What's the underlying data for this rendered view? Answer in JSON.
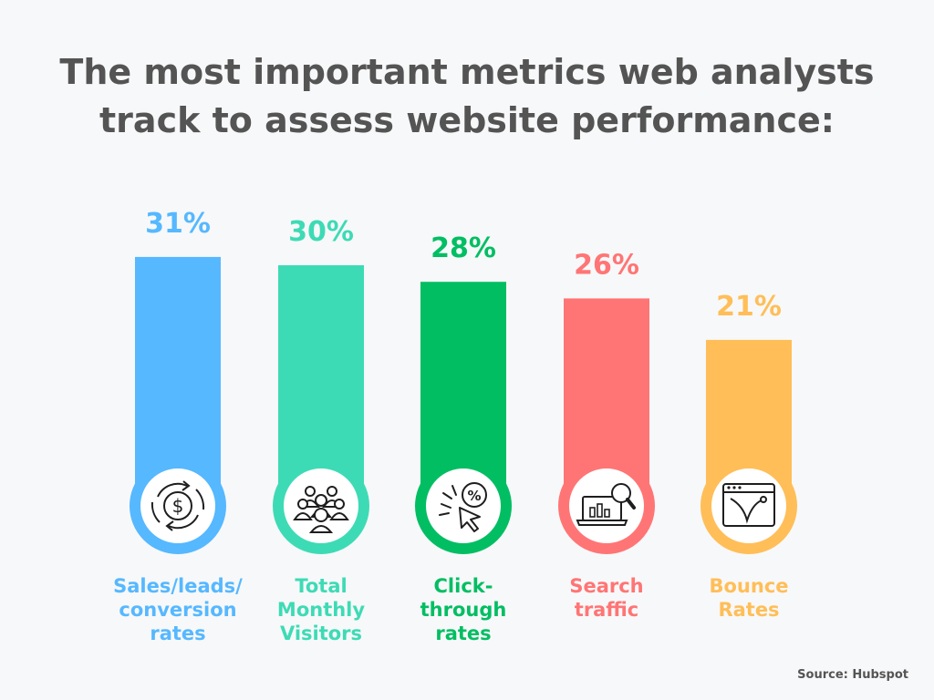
{
  "title_line1": "The most important metrics web analysts",
  "title_line2": "track to assess website performance:",
  "source": "Source: Hubspot",
  "chart_data": {
    "type": "bar",
    "categories": [
      [
        "Sales/leads/",
        "conversion",
        "rates"
      ],
      [
        "Total",
        "Monthly",
        "Visitors"
      ],
      [
        "Click-",
        "through",
        "rates"
      ],
      [
        "Search",
        "traffic"
      ],
      [
        "Bounce",
        "Rates"
      ]
    ],
    "values": [
      31,
      30,
      28,
      26,
      21
    ],
    "value_labels": [
      "31%",
      "30%",
      "28%",
      "26%",
      "21%"
    ],
    "colors": [
      "#56b8ff",
      "#3ddbb5",
      "#02be63",
      "#ff7575",
      "#ffbe58"
    ],
    "icons": [
      "dollar-cycle-icon",
      "people-group-icon",
      "click-percent-icon",
      "laptop-search-icon",
      "browser-bounce-icon"
    ],
    "unit": "%"
  }
}
